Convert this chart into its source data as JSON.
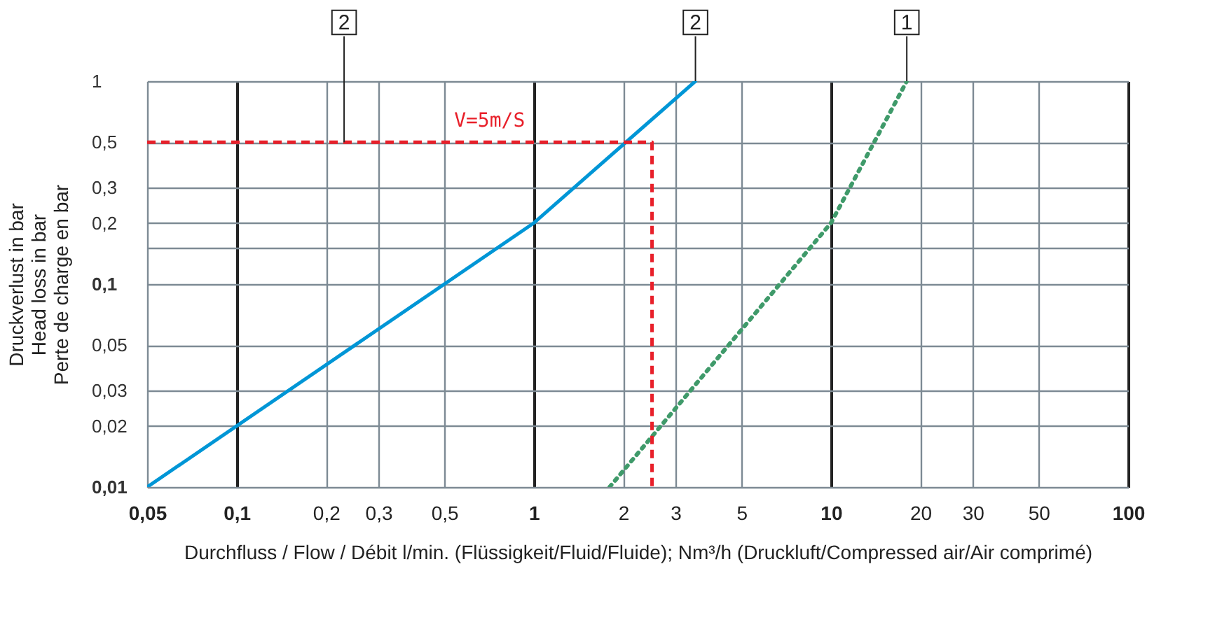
{
  "chart_data": {
    "type": "line",
    "xlabel": "Durchfluss / Flow / Débit  l/min. (Flüssigkeit/Fluid/Fluide); Nm³/h (Druckluft/Compressed air/Air comprimé)",
    "ylabel": "Druckverlust in bar\nHead loss in bar\nPerte de charge en bar",
    "log": "xy",
    "xlim": [
      0.05,
      100
    ],
    "ylim": [
      0.01,
      1
    ],
    "xticks": [
      {
        "value": 0.05,
        "label": "0,05"
      },
      {
        "value": 0.1,
        "label": "0,1"
      },
      {
        "value": 0.2,
        "label": "0,2"
      },
      {
        "value": 0.3,
        "label": "0,3"
      },
      {
        "value": 0.5,
        "label": "0,5"
      },
      1,
      2,
      3,
      5,
      10,
      20,
      30,
      50,
      100
    ],
    "yticks": [
      {
        "value": 0.01,
        "label": "0,01"
      },
      {
        "value": 0.02,
        "label": "0,02"
      },
      {
        "value": 0.03,
        "label": "0,03"
      },
      {
        "value": 0.05,
        "label": "0,05"
      },
      {
        "value": 0.1,
        "label": "0,1"
      },
      {
        "value": 0.15,
        "label": null
      },
      {
        "value": 0.2,
        "label": "0,2"
      },
      {
        "value": 0.3,
        "label": "0,3"
      },
      {
        "value": 0.5,
        "label": "0,5"
      },
      1
    ],
    "grid": true,
    "series": [
      {
        "color": "#0096d6",
        "line_style": "solid",
        "x": [
          0.05,
          1,
          3.5
        ],
        "values": [
          0.01,
          0.2,
          1
        ]
      },
      {
        "color": "#3f9a6a",
        "line_style": "dotted",
        "x": [
          1.8,
          10,
          18
        ],
        "values": [
          0.01,
          0.2,
          1
        ]
      },
      {
        "color": "#e8202a",
        "line_style": "dashed",
        "x": [
          0.05,
          2.5,
          2.5
        ],
        "values": [
          0.5,
          0.5,
          0.01
        ]
      }
    ],
    "annotations": [
      {
        "text": "V=5m/S",
        "x": 0.71,
        "y": 0.5
      },
      {
        "text": "2",
        "x": 0.23,
        "y": 0.5
      },
      {
        "text": "2",
        "x": 3.5,
        "y": 1
      },
      {
        "text": "1",
        "x": 18,
        "y": 1
      }
    ]
  }
}
